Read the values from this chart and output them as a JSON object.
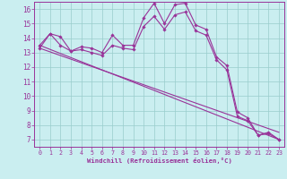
{
  "xlabel": "Windchill (Refroidissement éolien,°C)",
  "bg_color": "#caeef0",
  "line_color": "#993399",
  "grid_color": "#99cccc",
  "tick_color": "#993399",
  "xlim": [
    -0.5,
    23.5
  ],
  "ylim": [
    6.5,
    16.5
  ],
  "yticks": [
    7,
    8,
    9,
    10,
    11,
    12,
    13,
    14,
    15,
    16
  ],
  "xticks": [
    0,
    1,
    2,
    3,
    4,
    5,
    6,
    7,
    8,
    9,
    10,
    11,
    12,
    13,
    14,
    15,
    16,
    17,
    18,
    19,
    20,
    21,
    22,
    23
  ],
  "series": [
    {
      "x": [
        0,
        1,
        2,
        3,
        4,
        5,
        6,
        7,
        8,
        9,
        10,
        11,
        12,
        13,
        14,
        15,
        16,
        17,
        18,
        19,
        20,
        21,
        22,
        23
      ],
      "y": [
        13.5,
        14.3,
        14.1,
        13.1,
        13.4,
        13.3,
        13.0,
        14.2,
        13.5,
        13.5,
        15.4,
        16.4,
        15.0,
        16.3,
        16.4,
        14.9,
        14.6,
        12.7,
        12.1,
        8.9,
        8.5,
        7.3,
        7.5,
        7.0
      ],
      "has_markers": true
    },
    {
      "x": [
        0,
        1,
        2,
        3,
        4,
        5,
        6,
        7,
        8,
        9,
        10,
        11,
        12,
        13,
        14,
        15,
        16,
        17,
        18,
        19,
        20,
        21,
        22,
        23
      ],
      "y": [
        13.3,
        14.3,
        13.5,
        13.1,
        13.2,
        13.0,
        12.8,
        13.5,
        13.3,
        13.2,
        14.8,
        15.5,
        14.6,
        15.6,
        15.8,
        14.5,
        14.2,
        12.5,
        11.8,
        8.6,
        8.3,
        7.3,
        7.4,
        7.0
      ],
      "has_markers": true
    },
    {
      "x": [
        0,
        23
      ],
      "y": [
        13.5,
        7.0
      ],
      "has_markers": false
    },
    {
      "x": [
        0,
        23
      ],
      "y": [
        13.3,
        7.5
      ],
      "has_markers": false
    }
  ]
}
